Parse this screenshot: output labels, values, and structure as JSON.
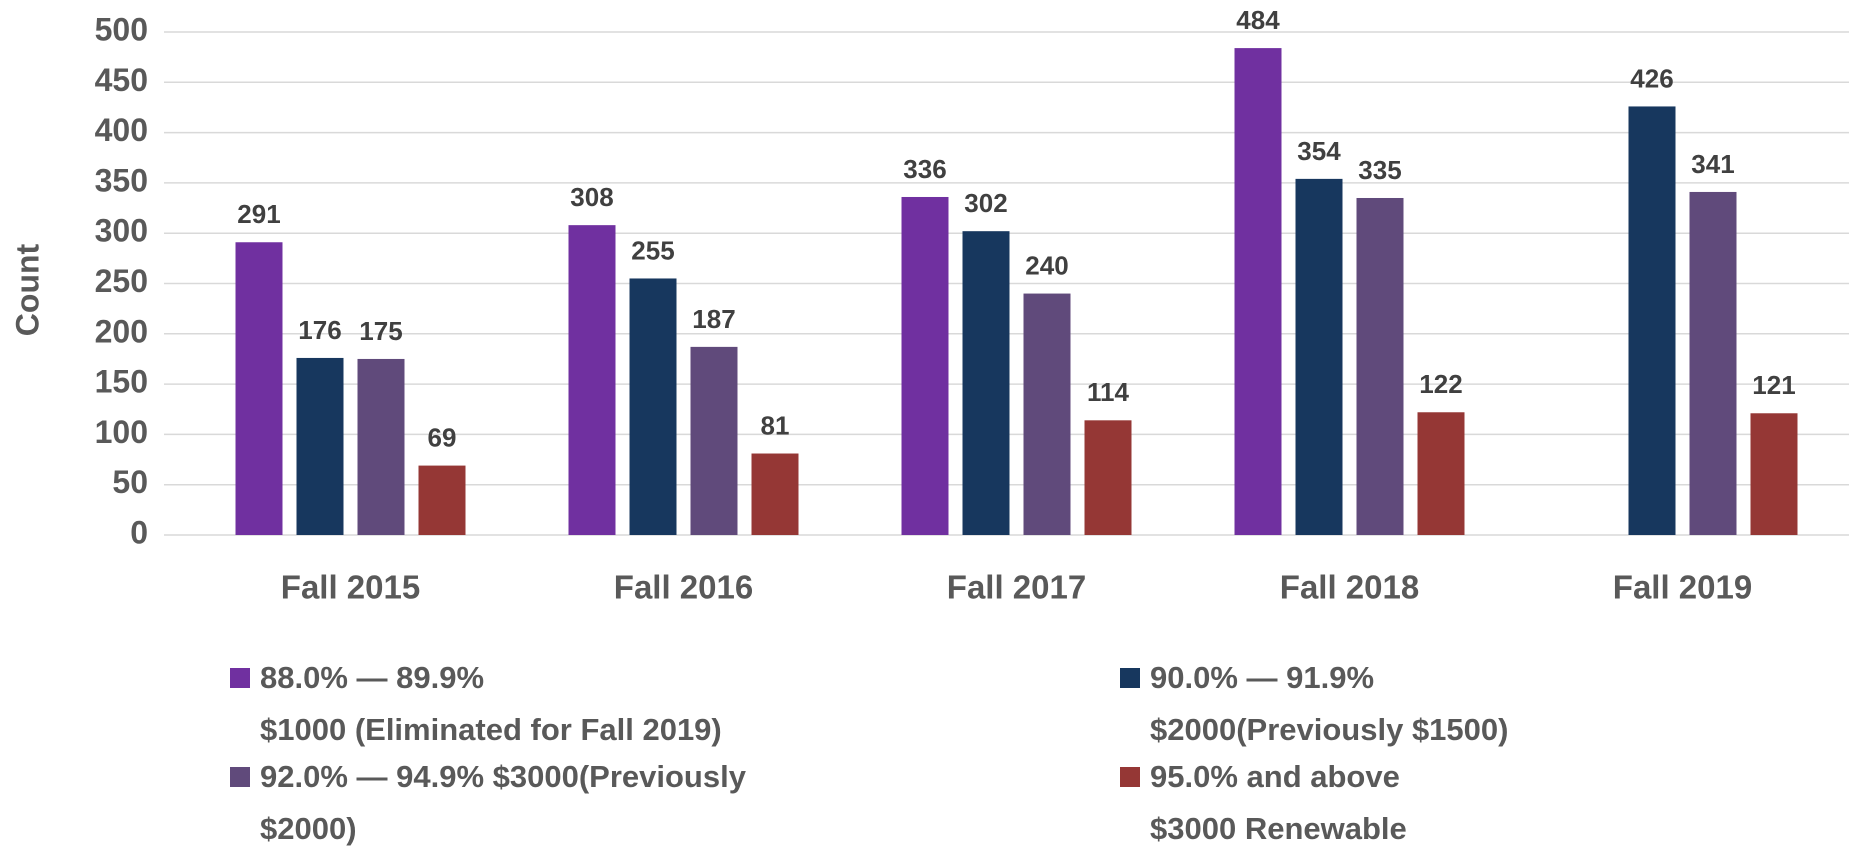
{
  "chart_data": {
    "type": "bar",
    "y_label": "Count",
    "categories": [
      "Fall 2015",
      "Fall 2016",
      "Fall 2017",
      "Fall 2018",
      "Fall 2019"
    ],
    "series": [
      {
        "name": "88.0% — 89.9%\n$1000 (Eliminated for Fall 2019)",
        "color": "#7030a0",
        "values": [
          291,
          308,
          336,
          484,
          null
        ]
      },
      {
        "name": "90.0% — 91.9%\n$2000(Previously $1500)",
        "color": "#17375e",
        "values": [
          176,
          255,
          302,
          354,
          426
        ]
      },
      {
        "name": "92.0% — 94.9% $3000(Previously\n$2000)",
        "color": "#604a7b",
        "values": [
          175,
          187,
          240,
          335,
          341
        ]
      },
      {
        "name": "95.0% and above\n$3000 Renewable",
        "color": "#953735",
        "values": [
          69,
          81,
          114,
          122,
          121
        ]
      }
    ],
    "ylim": [
      0,
      500
    ],
    "yticks": [
      0,
      50,
      100,
      150,
      200,
      250,
      300,
      350,
      400,
      450,
      500
    ],
    "grid": true,
    "legend": "bottom"
  }
}
